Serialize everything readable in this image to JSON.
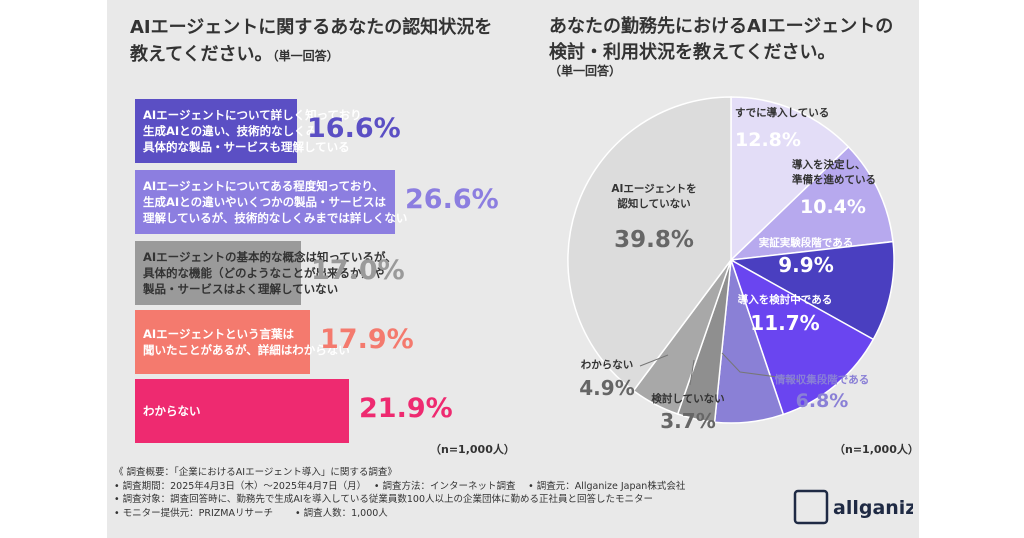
{
  "left_title_line1": "AIエージェントに関するあなたの認知状況を",
  "left_title_line2": "教えてください。",
  "left_title_sub": "（単一回答）",
  "right_title_line1": "あなたの勤務先におけるAIエージェントの",
  "right_title_line2": "検討・利用状況を教えてください。",
  "right_sub": "（単一回答）",
  "left_n": "（n=1,000人）",
  "right_n": "（n=1,000人）",
  "footer": [
    "《 調査概要：「企業におけるAIエージェント導入」に関する調査》",
    "• 調査期間：2025年4月3日（木）〜2025年4月7日（月）　 • 調査方法：インターネット調査　 • 調査元：Allganize Japan株式会社",
    "• 調査対象：調査回答時に、勤務先で生成AIを導入している従業員数100人以上の企業団体に勤める正社員と回答したモニター",
    "• モニター提供元：PRIZMAリサーチ　　 • 調査人数：1,000人"
  ],
  "logo_text": "allganize",
  "chart_data": [
    {
      "type": "bar",
      "categories": [
        "AIエージェントについて詳しく知っており、\n生成AIとの違い、技術的なしくみ、\n具体的な製品・サービスも理解している",
        "AIエージェントについてある程度知っており、\n生成AIとの違いやいくつかの製品・サービスは\n理解しているが、技術的なしくみまでは詳しくない",
        "AIエージェントの基本的な概念は知っているが、\n具体的な機能（どのようなことが出来るか）や\n製品・サービスはよく理解していない",
        "AIエージェントという言葉は\n聞いたことがあるが、詳細はわからない",
        "わからない"
      ],
      "values": [
        16.6,
        26.6,
        17.0,
        17.9,
        21.9
      ],
      "value_labels": [
        "16.6%",
        "26.6%",
        "17.0%",
        "17.9%",
        "21.9%"
      ],
      "colors": [
        "#5b4fc4",
        "#8c7ee0",
        "#9a9a9a",
        "#f47a6e",
        "#ee2a70"
      ],
      "orientation": "horizontal"
    },
    {
      "type": "pie",
      "categories": [
        "すでに導入している",
        "導入を決定し、準備を進めている",
        "実証実験段階である",
        "導入を検討中である",
        "情報収集段階である",
        "検討していない",
        "わからない",
        "AIエージェントを認知していない"
      ],
      "values": [
        12.8,
        10.4,
        9.9,
        11.7,
        6.8,
        3.7,
        4.9,
        39.8
      ],
      "value_labels": [
        "12.8%",
        "10.4%",
        "9.9%",
        "11.7%",
        "6.8%",
        "3.7%",
        "4.9%",
        "39.8%"
      ],
      "colors": [
        "#e3ddf7",
        "#b7a9ee",
        "#4a3fc0",
        "#6a45f0",
        "#8a80d6",
        "#8f8f8f",
        "#a8a8a8",
        "#dcdcdc"
      ]
    }
  ]
}
